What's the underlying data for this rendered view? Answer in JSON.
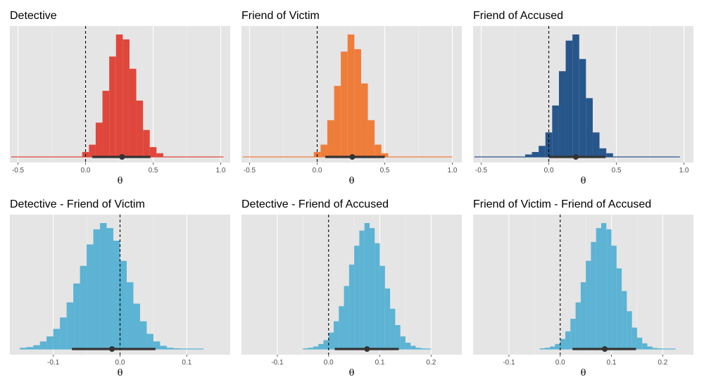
{
  "figure": {
    "background": "#ffffff",
    "panel_background": "#e5e5e5",
    "grid_color": "#ffffff"
  },
  "chart_data": [
    {
      "type": "histogram",
      "title": "Detective",
      "xlabel": "θ",
      "xlim": [
        -0.56,
        1.07
      ],
      "xticks": [
        -0.5,
        0,
        0.5,
        1.0
      ],
      "xtick_labels": [
        "-0.5",
        "0.0",
        "0.5",
        "1.0"
      ],
      "vline": 0,
      "color": "#e0473c",
      "bins": {
        "start": -0.025,
        "width": 0.05,
        "rel_heights": [
          0.04,
          0.1,
          0.28,
          0.54,
          0.82,
          1.0,
          0.96,
          0.72,
          0.46,
          0.22,
          0.08,
          0.03
        ]
      },
      "tail": [
        -0.55,
        1.02
      ],
      "point_estimate": 0.27,
      "interval": [
        0.05,
        0.48
      ]
    },
    {
      "type": "histogram",
      "title": "Friend of Victim",
      "xlabel": "θ",
      "xlim": [
        -0.56,
        1.07
      ],
      "xticks": [
        -0.5,
        0,
        0.5,
        1.0
      ],
      "xtick_labels": [
        "-0.5",
        "0.0",
        "0.5",
        "1.0"
      ],
      "vline": 0,
      "color": "#ef7d3a",
      "bins": {
        "start": -0.025,
        "width": 0.05,
        "rel_heights": [
          0.04,
          0.1,
          0.3,
          0.58,
          0.86,
          1.0,
          0.88,
          0.6,
          0.3,
          0.1,
          0.03
        ]
      },
      "tail": [
        -0.55,
        1.0
      ],
      "point_estimate": 0.26,
      "interval": [
        0.06,
        0.5
      ]
    },
    {
      "type": "histogram",
      "title": "Friend of Accused",
      "xlabel": "θ",
      "xlim": [
        -0.56,
        1.07
      ],
      "xticks": [
        -0.5,
        0,
        0.5,
        1.0
      ],
      "xtick_labels": [
        "-0.5",
        "0.0",
        "0.5",
        "1.0"
      ],
      "vline": 0,
      "color": "#27568b",
      "bins": {
        "start": -0.175,
        "width": 0.05,
        "rel_heights": [
          0.02,
          0.04,
          0.09,
          0.2,
          0.42,
          0.7,
          0.95,
          1.0,
          0.8,
          0.48,
          0.2,
          0.07,
          0.03
        ]
      },
      "tail": [
        -0.55,
        0.97
      ],
      "point_estimate": 0.2,
      "interval": [
        0.0,
        0.42
      ]
    },
    {
      "type": "histogram",
      "title": "Detective - Friend of Victim",
      "xlabel": "θ",
      "xlim": [
        -0.165,
        0.165
      ],
      "xticks": [
        -0.1,
        0,
        0.1
      ],
      "xtick_labels": [
        "-0.1",
        "0.0",
        "0.1"
      ],
      "vline": 0,
      "color": "#5cb3d3",
      "bins": {
        "start": -0.15,
        "width": 0.01,
        "rel_heights": [
          0.01,
          0.015,
          0.03,
          0.06,
          0.1,
          0.16,
          0.25,
          0.37,
          0.52,
          0.66,
          0.83,
          0.95,
          1.0,
          0.96,
          0.86,
          0.7,
          0.53,
          0.36,
          0.22,
          0.12,
          0.06,
          0.025,
          0.01,
          0.005,
          0.003,
          0.002,
          0.001
        ]
      },
      "tail": [
        -0.15,
        0.125
      ],
      "point_estimate": -0.012,
      "interval": [
        -0.072,
        0.053
      ]
    },
    {
      "type": "histogram",
      "title": "Detective - Friend of Accused",
      "xlabel": "θ",
      "xlim": [
        -0.17,
        0.26
      ],
      "xticks": [
        -0.1,
        0,
        0.1,
        0.2
      ],
      "xtick_labels": [
        "-0.1",
        "0.0",
        "0.1",
        "0.2"
      ],
      "vline": 0,
      "color": "#5cb3d3",
      "bins": {
        "start": -0.05,
        "width": 0.01,
        "rel_heights": [
          0.005,
          0.01,
          0.02,
          0.04,
          0.07,
          0.13,
          0.22,
          0.34,
          0.5,
          0.67,
          0.82,
          0.94,
          1.0,
          0.96,
          0.84,
          0.66,
          0.48,
          0.32,
          0.19,
          0.1,
          0.05,
          0.025,
          0.01,
          0.005,
          0.002
        ]
      },
      "tail": [
        -0.05,
        0.2
      ],
      "point_estimate": 0.075,
      "interval": [
        0.012,
        0.137
      ]
    },
    {
      "type": "histogram",
      "title": "Friend of Victim - Friend of Accused",
      "xlabel": "θ",
      "xlim": [
        -0.17,
        0.26
      ],
      "xticks": [
        -0.1,
        0,
        0.1,
        0.2
      ],
      "xtick_labels": [
        "-0.1",
        "0.0",
        "0.1",
        "0.2"
      ],
      "vline": 0,
      "color": "#5cb3d3",
      "bins": {
        "start": -0.04,
        "width": 0.01,
        "rel_heights": [
          0.005,
          0.01,
          0.02,
          0.04,
          0.08,
          0.14,
          0.24,
          0.37,
          0.53,
          0.7,
          0.85,
          0.96,
          1.0,
          0.95,
          0.82,
          0.64,
          0.46,
          0.3,
          0.17,
          0.09,
          0.045,
          0.02,
          0.008,
          0.004,
          0.002,
          0.001
        ]
      },
      "tail": [
        -0.04,
        0.225
      ],
      "point_estimate": 0.087,
      "interval": [
        0.024,
        0.148
      ]
    }
  ]
}
